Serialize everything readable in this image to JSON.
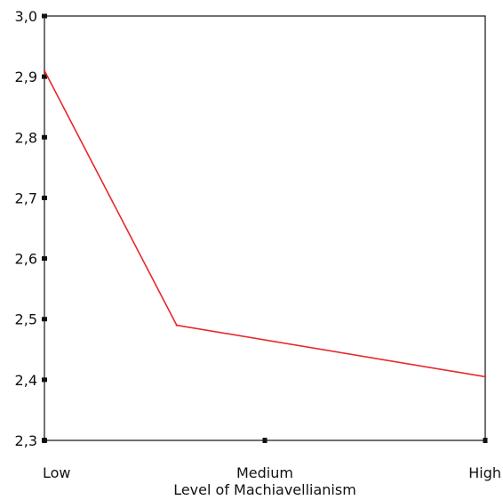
{
  "chart_data": {
    "type": "line",
    "categories": [
      "Low",
      "Medium",
      "High"
    ],
    "x": [
      0,
      0.3,
      1.0
    ],
    "series": [
      {
        "values": [
          2.91,
          2.49,
          2.405
        ],
        "color": "#e8282b"
      }
    ],
    "xlabel": "Level of Machiavellianism",
    "ylabel": "",
    "ylim": [
      2.3,
      3.0
    ],
    "yticks": [
      "3,0",
      "2,9",
      "2,8",
      "2,7",
      "2,6",
      "2,5",
      "2,4",
      "2,3"
    ],
    "ytick_values": [
      3.0,
      2.9,
      2.8,
      2.7,
      2.6,
      2.5,
      2.4,
      2.3
    ],
    "grid": false
  }
}
